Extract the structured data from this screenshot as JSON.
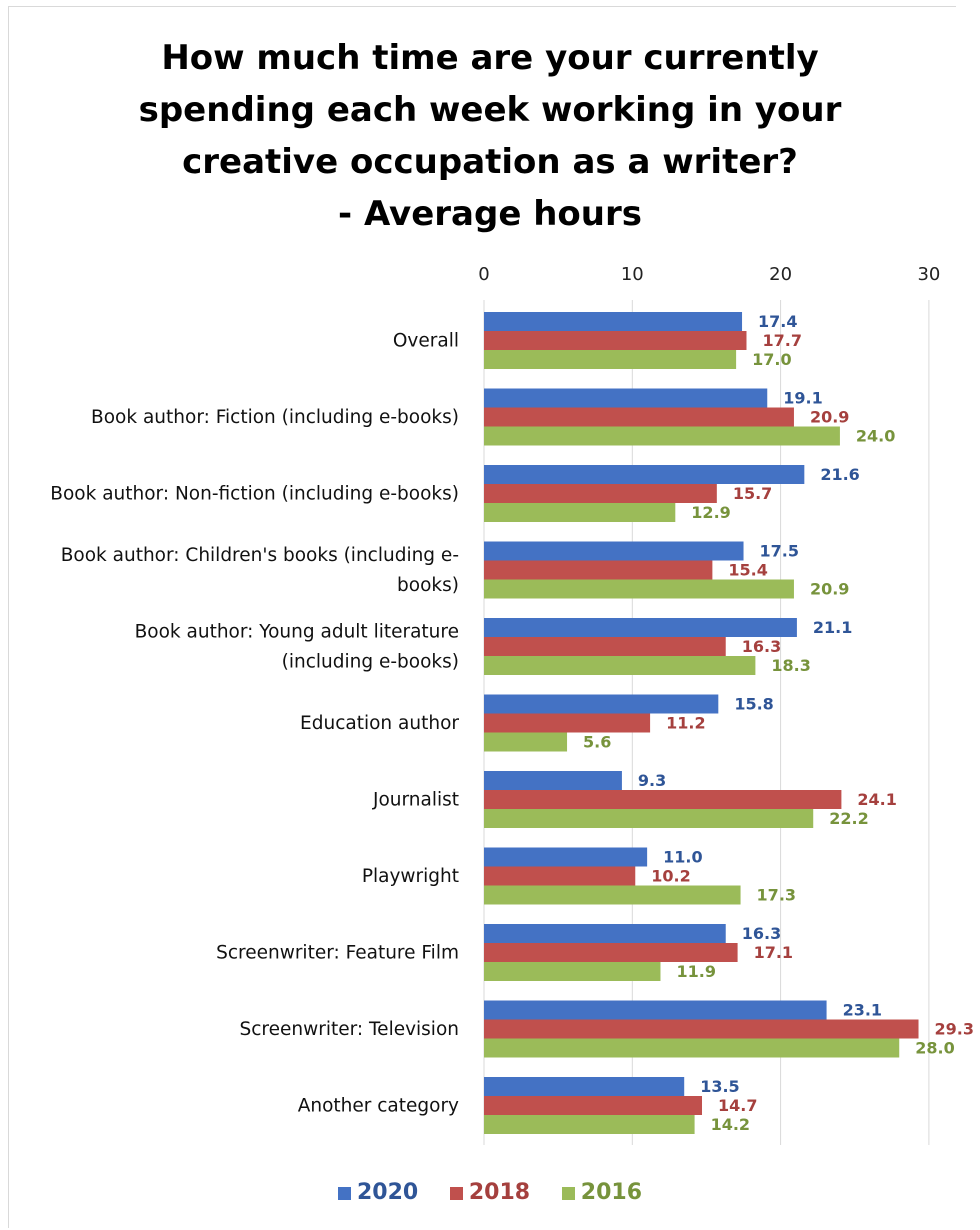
{
  "chart_data": {
    "type": "bar",
    "orientation": "horizontal",
    "title_lines": [
      "How much time are your currently",
      "spending each week working in your",
      "creative occupation as a writer?",
      "- Average hours"
    ],
    "x_ticks": [
      "0",
      "10",
      "20",
      "30"
    ],
    "xlim": [
      0,
      30
    ],
    "grid": true,
    "legend_position": "bottom",
    "categories": [
      [
        "Overall"
      ],
      [
        "Book author: Fiction (including e-books)"
      ],
      [
        "Book author: Non-fiction (including e-books)"
      ],
      [
        "Book author: Children's books (including e-",
        "books)"
      ],
      [
        "Book author: Young adult literature",
        "(including e-books)"
      ],
      [
        "Education author"
      ],
      [
        "Journalist"
      ],
      [
        "Playwright"
      ],
      [
        "Screenwriter: Feature Film"
      ],
      [
        "Screenwriter: Television"
      ],
      [
        "Another category"
      ]
    ],
    "series": [
      {
        "name": "2020",
        "color": "#4472c4",
        "label_color": "#2f5597",
        "values": [
          17.4,
          19.1,
          21.6,
          17.5,
          21.1,
          15.8,
          9.3,
          11.0,
          16.3,
          23.1,
          13.5
        ],
        "labels": [
          "17.4",
          "19.1",
          "21.6",
          "17.5",
          "21.1",
          "15.8",
          "9.3",
          "11.0",
          "16.3",
          "23.1",
          "13.5"
        ]
      },
      {
        "name": "2018",
        "color": "#c0504d",
        "label_color": "#a5403e",
        "values": [
          17.7,
          20.9,
          15.7,
          15.4,
          16.3,
          11.2,
          24.1,
          10.2,
          17.1,
          29.3,
          14.7
        ],
        "labels": [
          "17.7",
          "20.9",
          "15.7",
          "15.4",
          "16.3",
          "11.2",
          "24.1",
          "10.2",
          "17.1",
          "29.3",
          "14.7"
        ]
      },
      {
        "name": "2016",
        "color": "#9bbb59",
        "label_color": "#77933c",
        "values": [
          17.0,
          24.0,
          12.9,
          20.9,
          18.3,
          5.6,
          22.2,
          17.3,
          11.9,
          28.0,
          14.2
        ],
        "labels": [
          "17.0",
          "24.0",
          "12.9",
          "20.9",
          "18.3",
          "5.6",
          "22.2",
          "17.3",
          "11.9",
          "28.0",
          "14.2"
        ]
      }
    ]
  }
}
